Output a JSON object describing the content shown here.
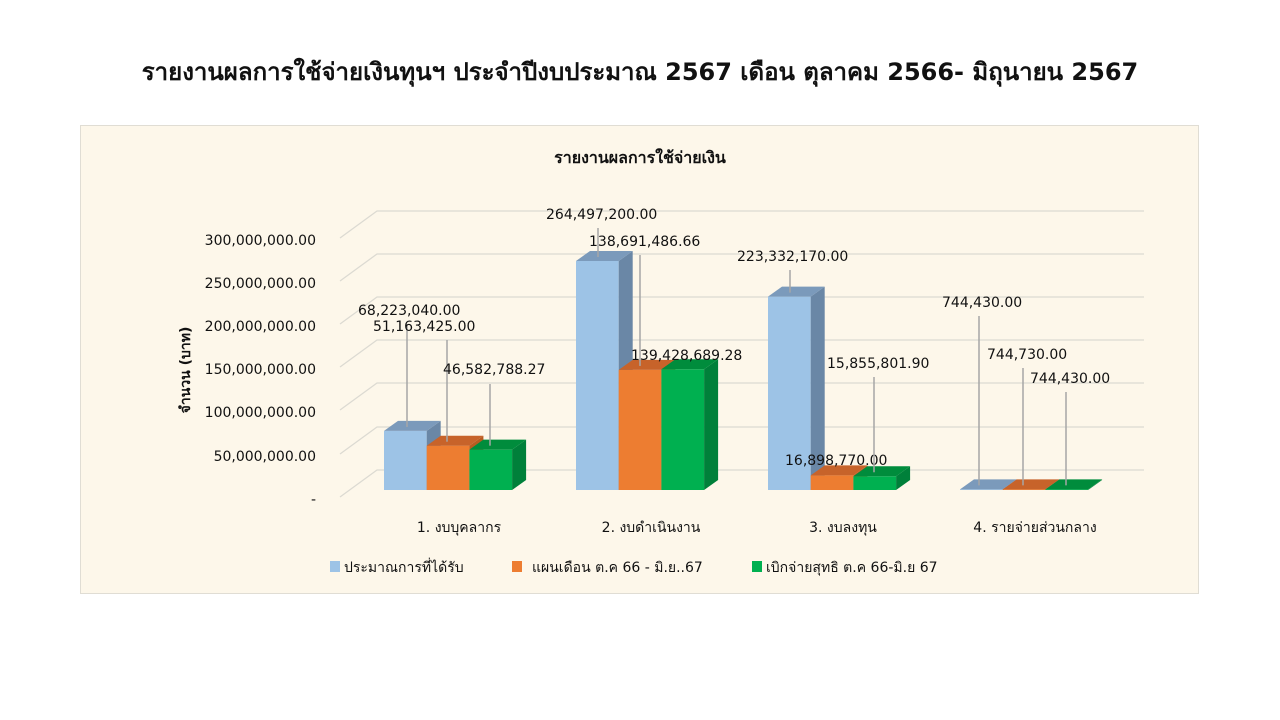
{
  "page": {
    "title": "รายงานผลการใช้จ่ายเงินทุนฯ ประจำปีงบประมาณ 2567 เดือน ตุลาคม 2566- มิถุนายน 2567"
  },
  "colors": {
    "background": "#fdf7ea",
    "series": [
      "#9dc3e6",
      "#ed7d31",
      "#00b050"
    ],
    "series_side": [
      "#6a87a6",
      "#b85c20",
      "#00803a"
    ],
    "series_top": [
      "#7b9abb",
      "#c7632a",
      "#008c3c"
    ],
    "grid": "#dcdad2"
  },
  "chart_data": {
    "type": "bar",
    "title": "รายงานผลการใช้จ่ายเงิน",
    "xlabel": "",
    "ylabel": "จำนวน (บาท)",
    "ylim": [
      0,
      300000000
    ],
    "grid": true,
    "legend_position": "bottom",
    "style": "3d-clustered-column",
    "yticks": [
      "-",
      "50,000,000.00",
      "100,000,000.00",
      "150,000,000.00",
      "200,000,000.00",
      "250,000,000.00",
      "300,000,000.00"
    ],
    "categories": [
      "1. งบบุคลากร",
      "2. งบดำเนินงาน",
      "3. งบลงทุน",
      "4. รายจ่ายส่วนกลาง"
    ],
    "series": [
      {
        "name": "ประมาณการที่ได้รับ",
        "values": [
          68223040.0,
          264497200.0,
          223332170.0,
          744430.0
        ],
        "labels": [
          "68,223,040.00",
          "264,497,200.00",
          "223,332,170.00",
          "744,430.00"
        ]
      },
      {
        "name": "แผนเดือน ต.ค 66 - มิ.ย..67",
        "values": [
          51163425.0,
          138691486.66,
          16898770.0,
          744730.0
        ],
        "labels": [
          "51,163,425.00",
          "138,691,486.66",
          "16,898,770.00",
          "744,730.00"
        ]
      },
      {
        "name": "เบิกจ่ายสุทธิ ต.ค 66-มิ.ย 67",
        "values": [
          46582788.27,
          139428689.28,
          15855801.9,
          744430.0
        ],
        "labels": [
          "46,582,788.27",
          "139,428,689.28",
          "15,855,801.90",
          "744,430.00"
        ]
      }
    ]
  },
  "label_positions": [
    [
      [
        358,
        307,
        407,
        320
      ],
      [
        373,
        323,
        447,
        336
      ],
      [
        443,
        366,
        490,
        380
      ]
    ],
    [
      [
        546,
        211,
        598,
        224
      ],
      [
        589,
        238,
        640,
        251
      ],
      [
        631,
        352,
        678,
        365
      ]
    ],
    [
      [
        737,
        253,
        790,
        266
      ],
      [
        785,
        457,
        830,
        470
      ],
      [
        827,
        360,
        874,
        373
      ]
    ],
    [
      [
        942,
        299,
        979,
        312
      ],
      [
        987,
        351,
        1023,
        364
      ],
      [
        1030,
        375,
        1066,
        388
      ]
    ]
  ]
}
